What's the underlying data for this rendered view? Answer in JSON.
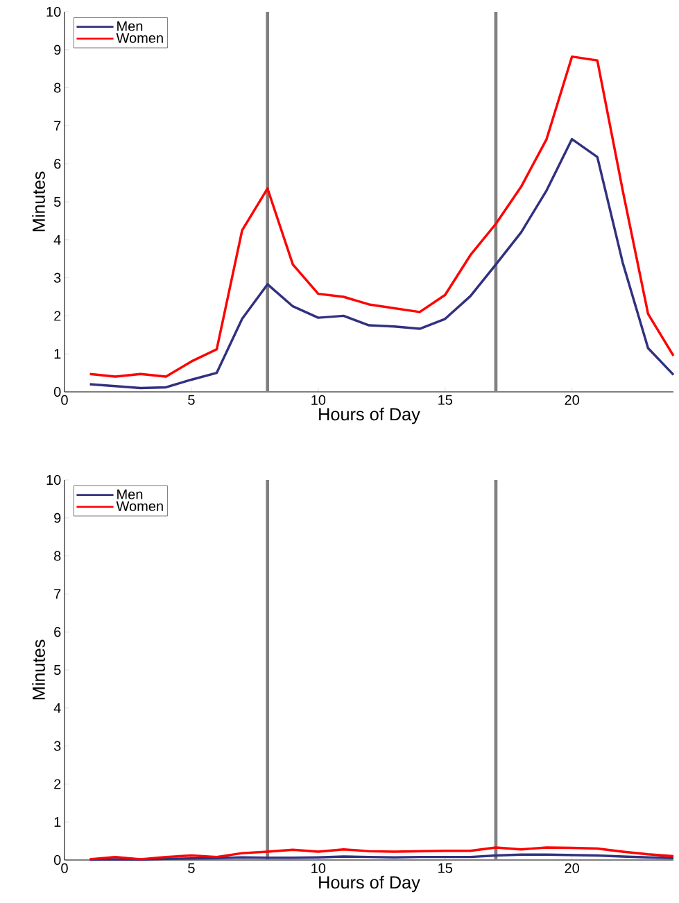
{
  "chart_data": [
    {
      "type": "line",
      "xlabel": "Hours of Day",
      "ylabel": "Minutes",
      "x": [
        1,
        2,
        3,
        4,
        5,
        6,
        7,
        8,
        9,
        10,
        11,
        12,
        13,
        14,
        15,
        16,
        17,
        18,
        19,
        20,
        21,
        22,
        23,
        24
      ],
      "xlim": [
        0,
        24
      ],
      "ylim": [
        0,
        10
      ],
      "xticks": [
        0,
        5,
        10,
        15,
        20
      ],
      "yticks": [
        0,
        1,
        2,
        3,
        4,
        5,
        6,
        7,
        8,
        9,
        10
      ],
      "legend": "top left",
      "grid": false,
      "ref_lines": [
        {
          "axis": "x",
          "value": 8,
          "color": "#808080"
        },
        {
          "axis": "x",
          "value": 17,
          "color": "#808080"
        }
      ],
      "series": [
        {
          "name": "Men",
          "color": "#31317f",
          "values": [
            0.2,
            0.15,
            0.1,
            0.12,
            0.32,
            0.5,
            1.92,
            2.83,
            2.25,
            1.95,
            2.0,
            1.75,
            1.72,
            1.66,
            1.92,
            2.52,
            3.35,
            4.2,
            5.3,
            6.65,
            6.18,
            3.4,
            1.15,
            0.45
          ]
        },
        {
          "name": "Women",
          "color": "#ff0000",
          "values": [
            0.47,
            0.4,
            0.47,
            0.4,
            0.8,
            1.12,
            4.25,
            5.35,
            3.35,
            2.58,
            2.5,
            2.3,
            2.2,
            2.1,
            2.55,
            3.6,
            4.42,
            5.4,
            6.65,
            8.82,
            8.72,
            5.3,
            2.05,
            0.95
          ]
        }
      ]
    },
    {
      "type": "line",
      "xlabel": "Hours of Day",
      "ylabel": "Minutes",
      "x": [
        1,
        2,
        3,
        4,
        5,
        6,
        7,
        8,
        9,
        10,
        11,
        12,
        13,
        14,
        15,
        16,
        17,
        18,
        19,
        20,
        21,
        22,
        23,
        24
      ],
      "xlim": [
        0,
        24
      ],
      "ylim": [
        0,
        10
      ],
      "xticks": [
        0,
        5,
        10,
        15,
        20
      ],
      "yticks": [
        0,
        1,
        2,
        3,
        4,
        5,
        6,
        7,
        8,
        9,
        10
      ],
      "legend": "top left",
      "grid": false,
      "ref_lines": [
        {
          "axis": "x",
          "value": 8,
          "color": "#808080"
        },
        {
          "axis": "x",
          "value": 17,
          "color": "#808080"
        }
      ],
      "series": [
        {
          "name": "Men",
          "color": "#31317f",
          "values": [
            0.01,
            0.02,
            0.01,
            0.03,
            0.04,
            0.05,
            0.07,
            0.06,
            0.06,
            0.07,
            0.09,
            0.08,
            0.07,
            0.08,
            0.08,
            0.08,
            0.12,
            0.14,
            0.14,
            0.13,
            0.12,
            0.09,
            0.07,
            0.05
          ]
        },
        {
          "name": "Women",
          "color": "#ff0000",
          "values": [
            0.02,
            0.08,
            0.02,
            0.08,
            0.12,
            0.08,
            0.18,
            0.22,
            0.27,
            0.22,
            0.28,
            0.23,
            0.22,
            0.23,
            0.24,
            0.24,
            0.33,
            0.28,
            0.33,
            0.32,
            0.3,
            0.22,
            0.15,
            0.1
          ]
        }
      ]
    }
  ]
}
